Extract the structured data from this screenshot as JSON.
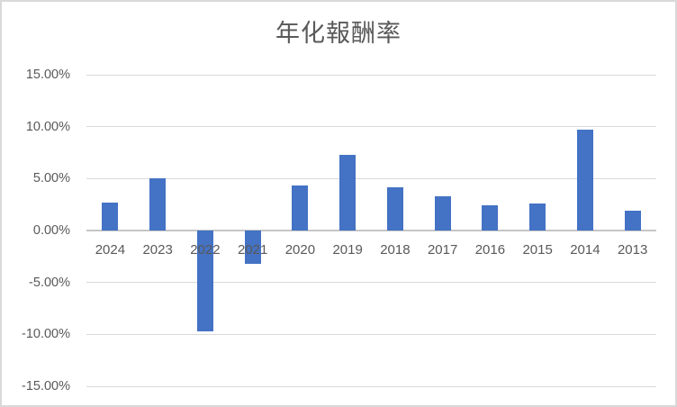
{
  "chart_data": {
    "type": "bar",
    "title": "年化報酬率",
    "categories": [
      "2024",
      "2023",
      "2022",
      "2021",
      "2020",
      "2019",
      "2018",
      "2017",
      "2016",
      "2015",
      "2014",
      "2013"
    ],
    "values": [
      2.7,
      5.0,
      -9.7,
      -3.2,
      4.3,
      7.3,
      4.2,
      3.3,
      2.4,
      2.6,
      9.7,
      1.9
    ],
    "value_unit": "percent",
    "xlabel": "",
    "ylabel": "",
    "ylim": [
      -15,
      15
    ],
    "yticks": [
      {
        "value": 15,
        "label": "15.00%"
      },
      {
        "value": 10,
        "label": "10.00%"
      },
      {
        "value": 5,
        "label": "5.00%"
      },
      {
        "value": 0,
        "label": "0.00%"
      },
      {
        "value": -5,
        "label": "-5.00%"
      },
      {
        "value": -10,
        "label": "-10.00%"
      },
      {
        "value": -15,
        "label": "-15.00%"
      }
    ],
    "grid": true,
    "legend": "none",
    "colors": {
      "bar": "#4472C4",
      "gridline": "#D9D9D9",
      "axis_line": "#C6C6C6",
      "tick_label": "#595959",
      "title": "#595959",
      "background": "#FFFFFF",
      "border": "#D9D9D9"
    }
  }
}
